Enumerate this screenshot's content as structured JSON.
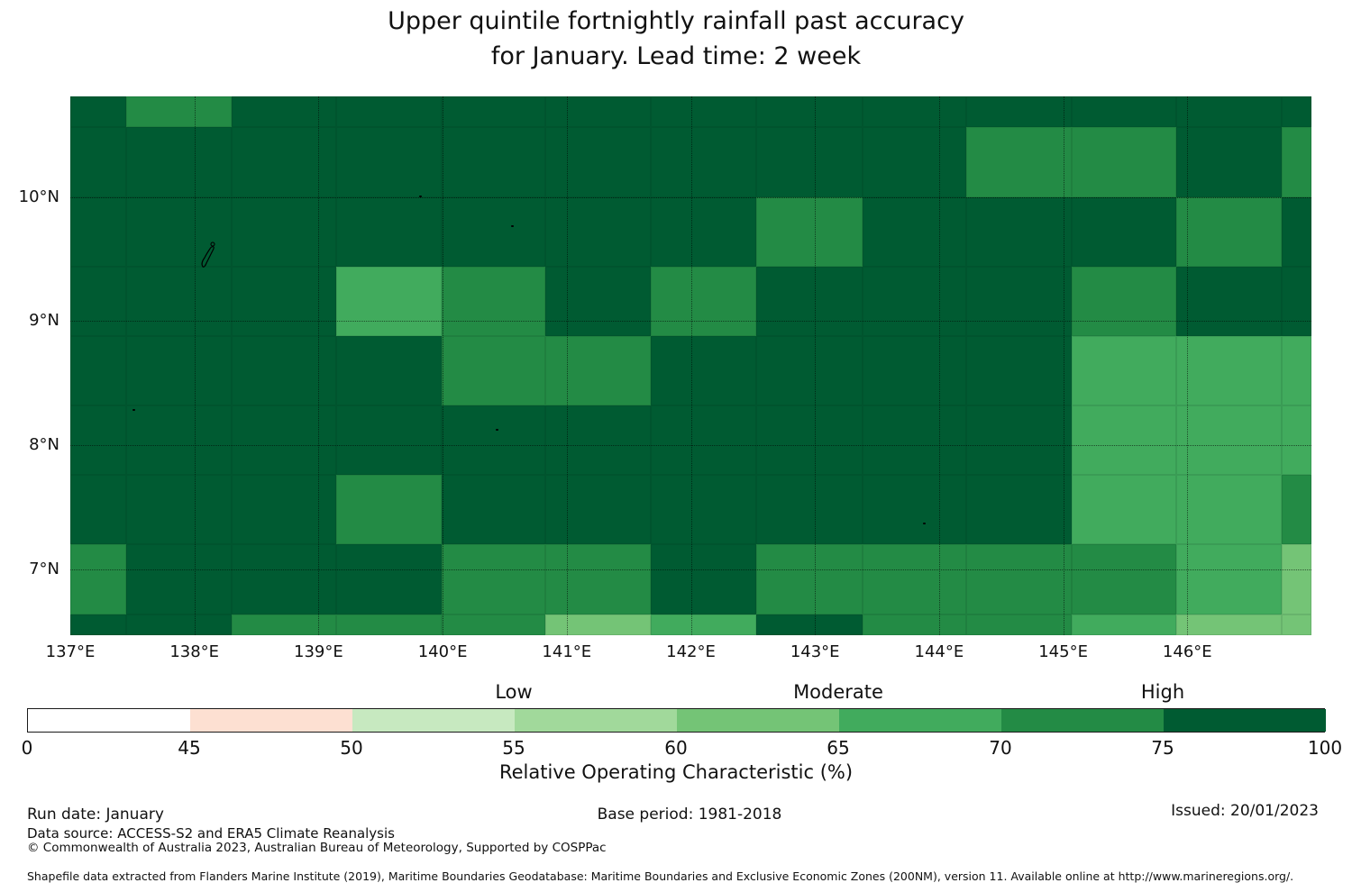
{
  "title": {
    "line1": "Upper quintile fortnightly rainfall past accuracy",
    "line2": "for January. Lead time: 2 week"
  },
  "map": {
    "lon_min": 137.0,
    "lon_max": 147.0,
    "lat_min": 6.47,
    "lat_max": 10.81,
    "x_ticks": [
      {
        "lon": 137,
        "label": "137°E"
      },
      {
        "lon": 138,
        "label": "138°E"
      },
      {
        "lon": 139,
        "label": "139°E"
      },
      {
        "lon": 140,
        "label": "140°E"
      },
      {
        "lon": 141,
        "label": "141°E"
      },
      {
        "lon": 142,
        "label": "142°E"
      },
      {
        "lon": 143,
        "label": "143°E"
      },
      {
        "lon": 144,
        "label": "144°E"
      },
      {
        "lon": 145,
        "label": "145°E"
      },
      {
        "lon": 146,
        "label": "146°E"
      }
    ],
    "y_ticks": [
      {
        "lat": 10,
        "label": "10°N"
      },
      {
        "lat": 9,
        "label": "9°N"
      },
      {
        "lat": 8,
        "label": "8°N"
      },
      {
        "lat": 7,
        "label": "7°N"
      }
    ]
  },
  "chart_data": {
    "type": "heatmap",
    "title": "Upper quintile fortnightly rainfall past accuracy for January. Lead time: 2 week",
    "value_name": "Relative Operating Characteristic (%)",
    "lon_edges": [
      137.0,
      137.45,
      138.3,
      139.14,
      139.99,
      140.83,
      141.68,
      142.53,
      143.38,
      144.22,
      145.07,
      145.91,
      146.76,
      147.0
    ],
    "lat_edges": [
      10.81,
      10.56,
      10.0,
      9.44,
      8.88,
      8.32,
      7.76,
      7.2,
      6.64,
      6.47
    ],
    "values": [
      [
        "D",
        "M",
        "D",
        "D",
        "D",
        "D",
        "D",
        "D",
        "D",
        "D",
        "D",
        "D",
        "D"
      ],
      [
        "D",
        "D",
        "D",
        "D",
        "D",
        "D",
        "D",
        "D",
        "D",
        "M",
        "M",
        "D",
        "M"
      ],
      [
        "D",
        "D",
        "D",
        "D",
        "D",
        "D",
        "D",
        "M",
        "D",
        "D",
        "D",
        "M",
        "D"
      ],
      [
        "D",
        "D",
        "D",
        "LM",
        "M",
        "D",
        "M",
        "D",
        "D",
        "D",
        "M",
        "D",
        "D"
      ],
      [
        "D",
        "D",
        "D",
        "D",
        "M",
        "M",
        "D",
        "D",
        "D",
        "D",
        "LM",
        "LM",
        "LM"
      ],
      [
        "D",
        "D",
        "D",
        "D",
        "D",
        "D",
        "D",
        "D",
        "D",
        "D",
        "LM",
        "LM",
        "LM"
      ],
      [
        "D",
        "D",
        "D",
        "M",
        "D",
        "D",
        "D",
        "D",
        "D",
        "D",
        "LM",
        "LM",
        "M"
      ],
      [
        "M",
        "D",
        "D",
        "D",
        "M",
        "M",
        "D",
        "M",
        "M",
        "M",
        "M",
        "LM",
        "L"
      ],
      [
        "D",
        "D",
        "M",
        "M",
        "M",
        "L",
        "LM",
        "D",
        "M",
        "M",
        "LM",
        "L",
        "L"
      ]
    ],
    "palette": {
      "D": {
        "color": "#005b32",
        "roc_range": "75-100"
      },
      "M": {
        "color": "#238b45",
        "roc_range": "70-75"
      },
      "LM": {
        "color": "#41ab5d",
        "roc_range": "65-70"
      },
      "L": {
        "color": "#74c476",
        "roc_range": "60-65"
      }
    },
    "islands": [
      {
        "name": "Yap",
        "lon": 138.12,
        "lat": 9.53,
        "style": "outline"
      },
      {
        "name": "Ulithi",
        "lon": 139.81,
        "lat": 10.01,
        "style": "dot"
      },
      {
        "name": "Fais",
        "lon": 140.55,
        "lat": 9.77,
        "style": "dot"
      },
      {
        "name": "Ngulu",
        "lon": 137.5,
        "lat": 8.29,
        "style": "dot"
      },
      {
        "name": "Sorol",
        "lon": 140.43,
        "lat": 8.13,
        "style": "dot"
      },
      {
        "name": "Woleai",
        "lon": 143.87,
        "lat": 7.38,
        "style": "dot"
      }
    ],
    "legend_position": "bottom",
    "grid": "dotted degree gridlines"
  },
  "colorbar": {
    "boundaries": [
      0,
      45,
      50,
      55,
      60,
      65,
      70,
      75,
      100
    ],
    "colors": [
      "#ffffff",
      "#fde0d2",
      "#c7e9c0",
      "#a1d99b",
      "#74c476",
      "#41ab5d",
      "#238b45",
      "#005b32"
    ],
    "category_labels": [
      {
        "label": "Low",
        "at": 55
      },
      {
        "label": "Moderate",
        "at": 65
      },
      {
        "label": "High",
        "at": 75
      }
    ],
    "axis_label": "Relative Operating Characteristic (%)"
  },
  "footer": {
    "run_date": "Run date: January",
    "base_period": "Base period: 1981-2018",
    "issued": "Issued: 20/01/2023",
    "data_source": "Data source: ACCESS-S2 and ERA5 Climate Reanalysis",
    "copyright": "© Commonwealth of Australia 2023, Australian Bureau of Meteorology, Supported by COSPPac",
    "shapefile": "Shapefile data extracted from Flanders Marine Institute (2019), Maritime Boundaries Geodatabase: Maritime Boundaries and Exclusive Economic Zones (200NM), version 11. Available online at http://www.marineregions.org/."
  }
}
